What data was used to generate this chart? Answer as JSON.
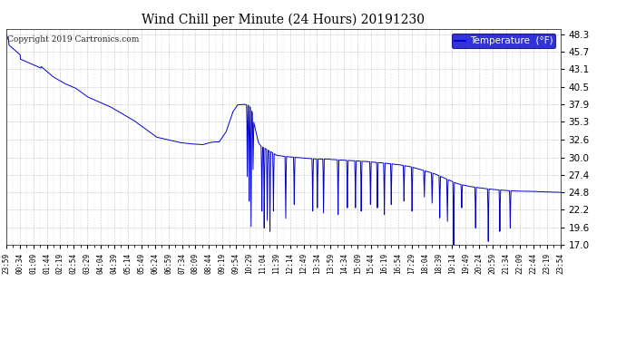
{
  "title": "Wind Chill per Minute (24 Hours) 20191230",
  "copyright_text": "Copyright 2019 Cartronics.com",
  "background_color": "#ffffff",
  "plot_bg_color": "#ffffff",
  "grid_color": "#bbbbbb",
  "line_color": "#0000cc",
  "ylim": [
    17.0,
    48.3
  ],
  "yticks": [
    17.0,
    19.6,
    22.2,
    24.8,
    27.4,
    30.0,
    32.6,
    35.3,
    37.9,
    40.5,
    43.1,
    45.7,
    48.3
  ],
  "xtick_labels": [
    "23:59",
    "00:34",
    "01:09",
    "01:44",
    "02:19",
    "02:54",
    "03:29",
    "04:04",
    "04:39",
    "05:14",
    "05:49",
    "06:24",
    "06:59",
    "07:34",
    "08:09",
    "08:44",
    "09:19",
    "09:54",
    "10:29",
    "11:04",
    "11:39",
    "12:14",
    "12:49",
    "13:34",
    "13:59",
    "14:34",
    "15:09",
    "15:44",
    "16:19",
    "16:54",
    "17:29",
    "18:04",
    "18:39",
    "19:14",
    "19:49",
    "20:24",
    "20:59",
    "21:34",
    "22:09",
    "22:44",
    "23:19",
    "23:54"
  ],
  "legend_label": "Temperature  (°F)",
  "legend_bg": "#0000cc",
  "legend_text_color": "#ffffff"
}
